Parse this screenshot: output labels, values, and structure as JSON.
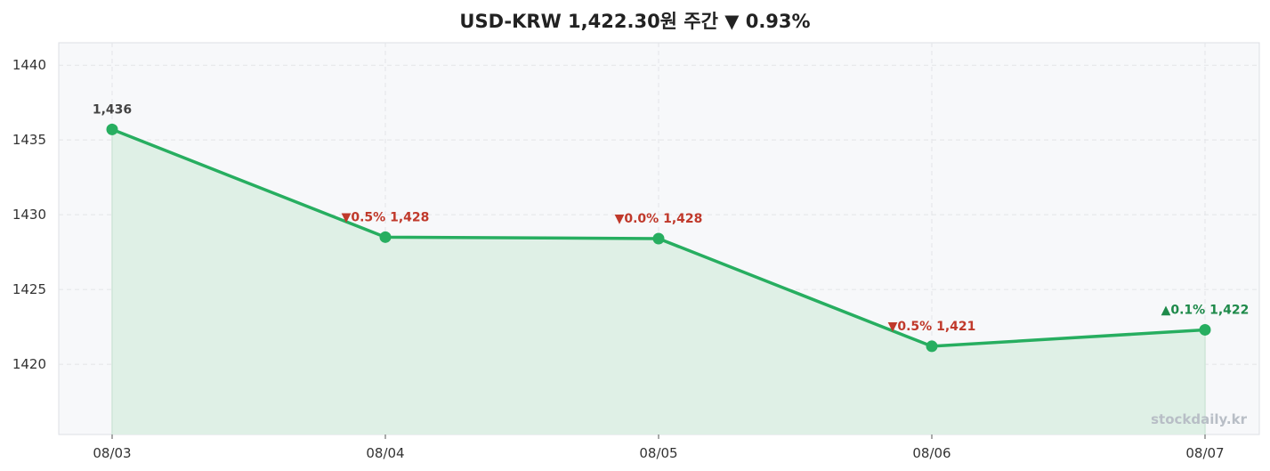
{
  "chart_data": {
    "type": "area",
    "title": "USD-KRW 1,422.30원 주간 ▼ 0.93%",
    "categories": [
      "08/03",
      "08/04",
      "08/05",
      "08/06",
      "08/07"
    ],
    "series": [
      {
        "values": [
          1435.7,
          1428.5,
          1428.4,
          1421.2,
          1422.3
        ]
      }
    ],
    "point_labels": [
      "1,436",
      "▼0.5% 1,428",
      "▼0.0% 1,428",
      "▼0.5% 1,421",
      "▲0.1% 1,422"
    ],
    "point_label_colors": [
      "#444444",
      "#c0392b",
      "#c0392b",
      "#c0392b",
      "#1e8a4a"
    ],
    "y_ticks": [
      1420,
      1425,
      1430,
      1435,
      1440
    ],
    "ylim": [
      1415.3,
      1441.5
    ],
    "grid": true,
    "line_color": "#27ae60",
    "fill_color": "#dff0e6",
    "watermark": "stockdaily.kr"
  }
}
